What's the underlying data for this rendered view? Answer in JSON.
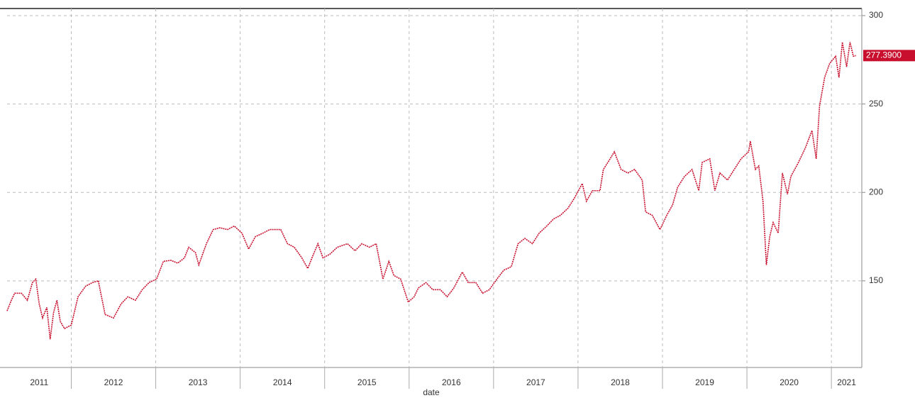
{
  "chart_data": {
    "type": "line",
    "x_label": "date",
    "x": [
      2011.24,
      2011.29,
      2011.33,
      2011.41,
      2011.48,
      2011.54,
      2011.58,
      2011.62,
      2011.66,
      2011.71,
      2011.75,
      2011.79,
      2011.83,
      2011.87,
      2011.92,
      2012.0,
      2012.08,
      2012.17,
      2012.25,
      2012.32,
      2012.4,
      2012.5,
      2012.59,
      2012.67,
      2012.76,
      2012.84,
      2012.92,
      2013.01,
      2013.09,
      2013.18,
      2013.26,
      2013.34,
      2013.39,
      2013.47,
      2013.51,
      2013.6,
      2013.68,
      2013.76,
      2013.85,
      2013.93,
      2014.02,
      2014.1,
      2014.18,
      2014.27,
      2014.35,
      2014.48,
      2014.56,
      2014.64,
      2014.73,
      2014.8,
      2014.85,
      2014.92,
      2014.98,
      2015.06,
      2015.15,
      2015.27,
      2015.36,
      2015.44,
      2015.53,
      2015.61,
      2015.69,
      2015.76,
      2015.82,
      2015.9,
      2015.99,
      2016.06,
      2016.11,
      2016.2,
      2016.28,
      2016.37,
      2016.45,
      2016.53,
      2016.63,
      2016.7,
      2016.79,
      2016.87,
      2016.95,
      2017.04,
      2017.12,
      2017.21,
      2017.29,
      2017.37,
      2017.46,
      2017.54,
      2017.63,
      2017.71,
      2017.79,
      2017.88,
      2017.96,
      2018.05,
      2018.1,
      2018.17,
      2018.26,
      2018.3,
      2018.38,
      2018.43,
      2018.51,
      2018.59,
      2018.67,
      2018.76,
      2018.8,
      2018.88,
      2018.97,
      2019.05,
      2019.12,
      2019.18,
      2019.26,
      2019.35,
      2019.43,
      2019.47,
      2019.56,
      2019.62,
      2019.68,
      2019.77,
      2019.85,
      2019.93,
      2020.02,
      2020.04,
      2020.1,
      2020.14,
      2020.19,
      2020.23,
      2020.27,
      2020.31,
      2020.37,
      2020.42,
      2020.48,
      2020.52,
      2020.61,
      2020.69,
      2020.77,
      2020.82,
      2020.86,
      2020.92,
      2020.98,
      2021.05,
      2021.09,
      2021.13,
      2021.18,
      2021.22,
      2021.26,
      2021.29
    ],
    "series": [
      {
        "color": "#c8102e",
        "values": [
          133,
          139,
          143,
          143,
          139,
          149,
          151,
          137,
          129,
          135,
          117,
          132,
          139,
          127,
          123,
          125,
          141,
          147,
          149,
          150,
          131,
          129,
          137,
          141,
          139,
          145,
          149,
          151,
          161,
          161.6,
          160,
          163,
          169,
          166,
          159,
          171,
          179,
          180,
          179,
          181,
          177,
          168,
          175,
          177,
          179,
          179,
          171,
          169,
          163,
          157,
          163,
          171,
          163,
          165,
          169,
          171,
          167,
          171,
          169,
          171,
          151,
          161,
          153,
          151,
          138,
          141,
          146,
          149,
          145,
          145,
          141,
          146,
          155,
          149,
          149,
          143,
          145,
          151,
          156,
          158,
          171,
          174,
          171,
          177,
          181,
          185,
          187,
          191,
          197,
          205,
          195,
          201,
          201,
          213,
          219,
          223,
          213,
          211,
          213,
          207,
          189,
          187,
          179,
          187,
          193,
          203,
          209,
          213,
          201,
          217,
          219,
          201,
          211,
          207,
          213,
          219,
          223,
          229,
          213,
          215,
          195,
          159,
          175,
          183,
          177,
          211,
          199,
          209,
          217,
          225,
          235,
          219,
          249,
          265,
          273,
          277,
          265,
          285,
          271,
          285,
          277,
          277.39
        ]
      }
    ],
    "annotation": {
      "value": 277.39,
      "label": "277.3900"
    },
    "xlim": [
      2011.24,
      2021.36
    ],
    "xticks": [
      2011,
      2012,
      2013,
      2014,
      2015,
      2016,
      2017,
      2018,
      2019,
      2020,
      2021
    ],
    "ylim": [
      101,
      304
    ],
    "yticks": [
      150,
      200,
      250,
      300
    ],
    "grid": true
  }
}
